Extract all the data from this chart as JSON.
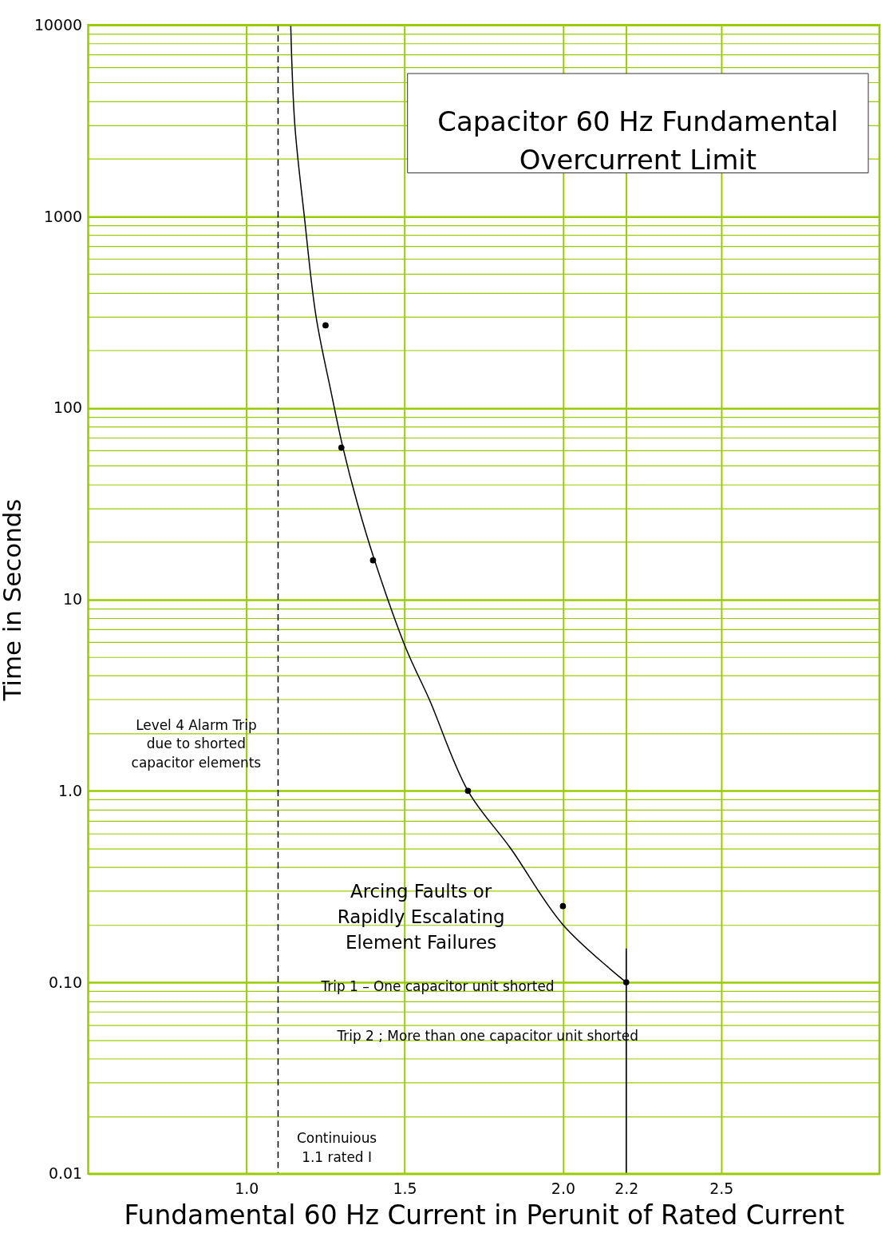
{
  "chart_data": {
    "type": "line",
    "title": "Capacitor 60 Hz Fundamental\nOvercurrent Limit",
    "xlabel": "Fundamental 60 Hz Current in Perunit of Rated Current",
    "ylabel": "Time in Seconds",
    "series": [
      {
        "color": "#000000",
        "marker": "none",
        "line_style": "solid",
        "x": [
          1.14,
          1.153,
          1.183,
          1.22,
          1.268,
          1.305,
          1.35,
          1.405,
          1.505,
          1.578,
          1.7,
          1.835,
          2.0,
          2.2
        ],
        "values": [
          10000,
          3000,
          1000,
          300,
          120,
          62,
          32,
          16,
          5.5,
          3.0,
          1.0,
          0.5,
          0.2,
          0.1
        ]
      },
      {
        "type": "scatter",
        "color": "#000000",
        "marker": "circle",
        "x": [
          1.25,
          1.3,
          1.4,
          1.7,
          2.0,
          2.2
        ],
        "values": [
          270,
          62,
          16,
          1.0,
          0.25,
          0.1
        ]
      },
      {
        "color": "#000000",
        "marker": "none",
        "line_style": "solid",
        "x": [
          2.2,
          2.2
        ],
        "values": [
          0.15,
          0.01
        ]
      }
    ],
    "ref_lines": [
      {
        "axis": "x",
        "value": 1.1,
        "color": "#000000",
        "line_style": "dashed"
      }
    ],
    "annotations": [
      "Level 4 Alarm Trip\ndue to shorted\ncapacitor elements",
      "Arcing Faults or\nRapidly Escalating\nElement Failures",
      "Trip 1 – One capacitor unit shorted",
      "Trip 2 ; More than one capacitor unit shorted",
      "Continuious\n1.1 rated I"
    ],
    "xlim": [
      0.5,
      3.0
    ],
    "ylim": [
      0.01,
      10000
    ],
    "log": "y",
    "grid": true,
    "xticks": [
      {
        "value": 1.0,
        "label": "1.0"
      },
      {
        "value": 1.5,
        "label": "1.5"
      },
      {
        "value": 2.0,
        "label": "2.0"
      },
      {
        "value": 2.2,
        "label": "2.2"
      },
      {
        "value": 2.5,
        "label": "2.5"
      }
    ],
    "yticks": [
      0.01,
      {
        "value": 0.02,
        "label": null
      },
      {
        "value": 0.03,
        "label": null
      },
      {
        "value": 0.04,
        "label": null
      },
      {
        "value": 0.05,
        "label": null
      },
      {
        "value": 0.06,
        "label": null
      },
      {
        "value": 0.07,
        "label": null
      },
      {
        "value": 0.08,
        "label": null
      },
      {
        "value": 0.09,
        "label": null
      },
      {
        "value": 0.1,
        "label": "0.10"
      },
      {
        "value": 0.2,
        "label": null
      },
      {
        "value": 0.3,
        "label": null
      },
      {
        "value": 0.4,
        "label": null
      },
      {
        "value": 0.5,
        "label": null
      },
      {
        "value": 0.6,
        "label": null
      },
      {
        "value": 0.7,
        "label": null
      },
      {
        "value": 0.8,
        "label": null
      },
      {
        "value": 0.9,
        "label": null
      },
      {
        "value": 1,
        "label": "1.0"
      },
      {
        "value": 2,
        "label": null
      },
      {
        "value": 3,
        "label": null
      },
      {
        "value": 4,
        "label": null
      },
      {
        "value": 5,
        "label": null
      },
      {
        "value": 6,
        "label": null
      },
      {
        "value": 7,
        "label": null
      },
      {
        "value": 8,
        "label": null
      },
      {
        "value": 9,
        "label": null
      },
      10,
      {
        "value": 20,
        "label": null
      },
      {
        "value": 30,
        "label": null
      },
      {
        "value": 40,
        "label": null
      },
      {
        "value": 50,
        "label": null
      },
      {
        "value": 60,
        "label": null
      },
      {
        "value": 70,
        "label": null
      },
      {
        "value": 80,
        "label": null
      },
      {
        "value": 90,
        "label": null
      },
      100,
      {
        "value": 200,
        "label": null
      },
      {
        "value": 300,
        "label": null
      },
      {
        "value": 400,
        "label": null
      },
      {
        "value": 500,
        "label": null
      },
      {
        "value": 600,
        "label": null
      },
      {
        "value": 700,
        "label": null
      },
      {
        "value": 800,
        "label": null
      },
      {
        "value": 900,
        "label": null
      },
      1000,
      {
        "value": 2000,
        "label": null
      },
      {
        "value": 3000,
        "label": null
      },
      {
        "value": 4000,
        "label": null
      },
      {
        "value": 5000,
        "label": null
      },
      {
        "value": 6000,
        "label": null
      },
      {
        "value": 7000,
        "label": null
      },
      {
        "value": 8000,
        "label": null
      },
      {
        "value": 9000,
        "label": null
      },
      10000
    ]
  }
}
